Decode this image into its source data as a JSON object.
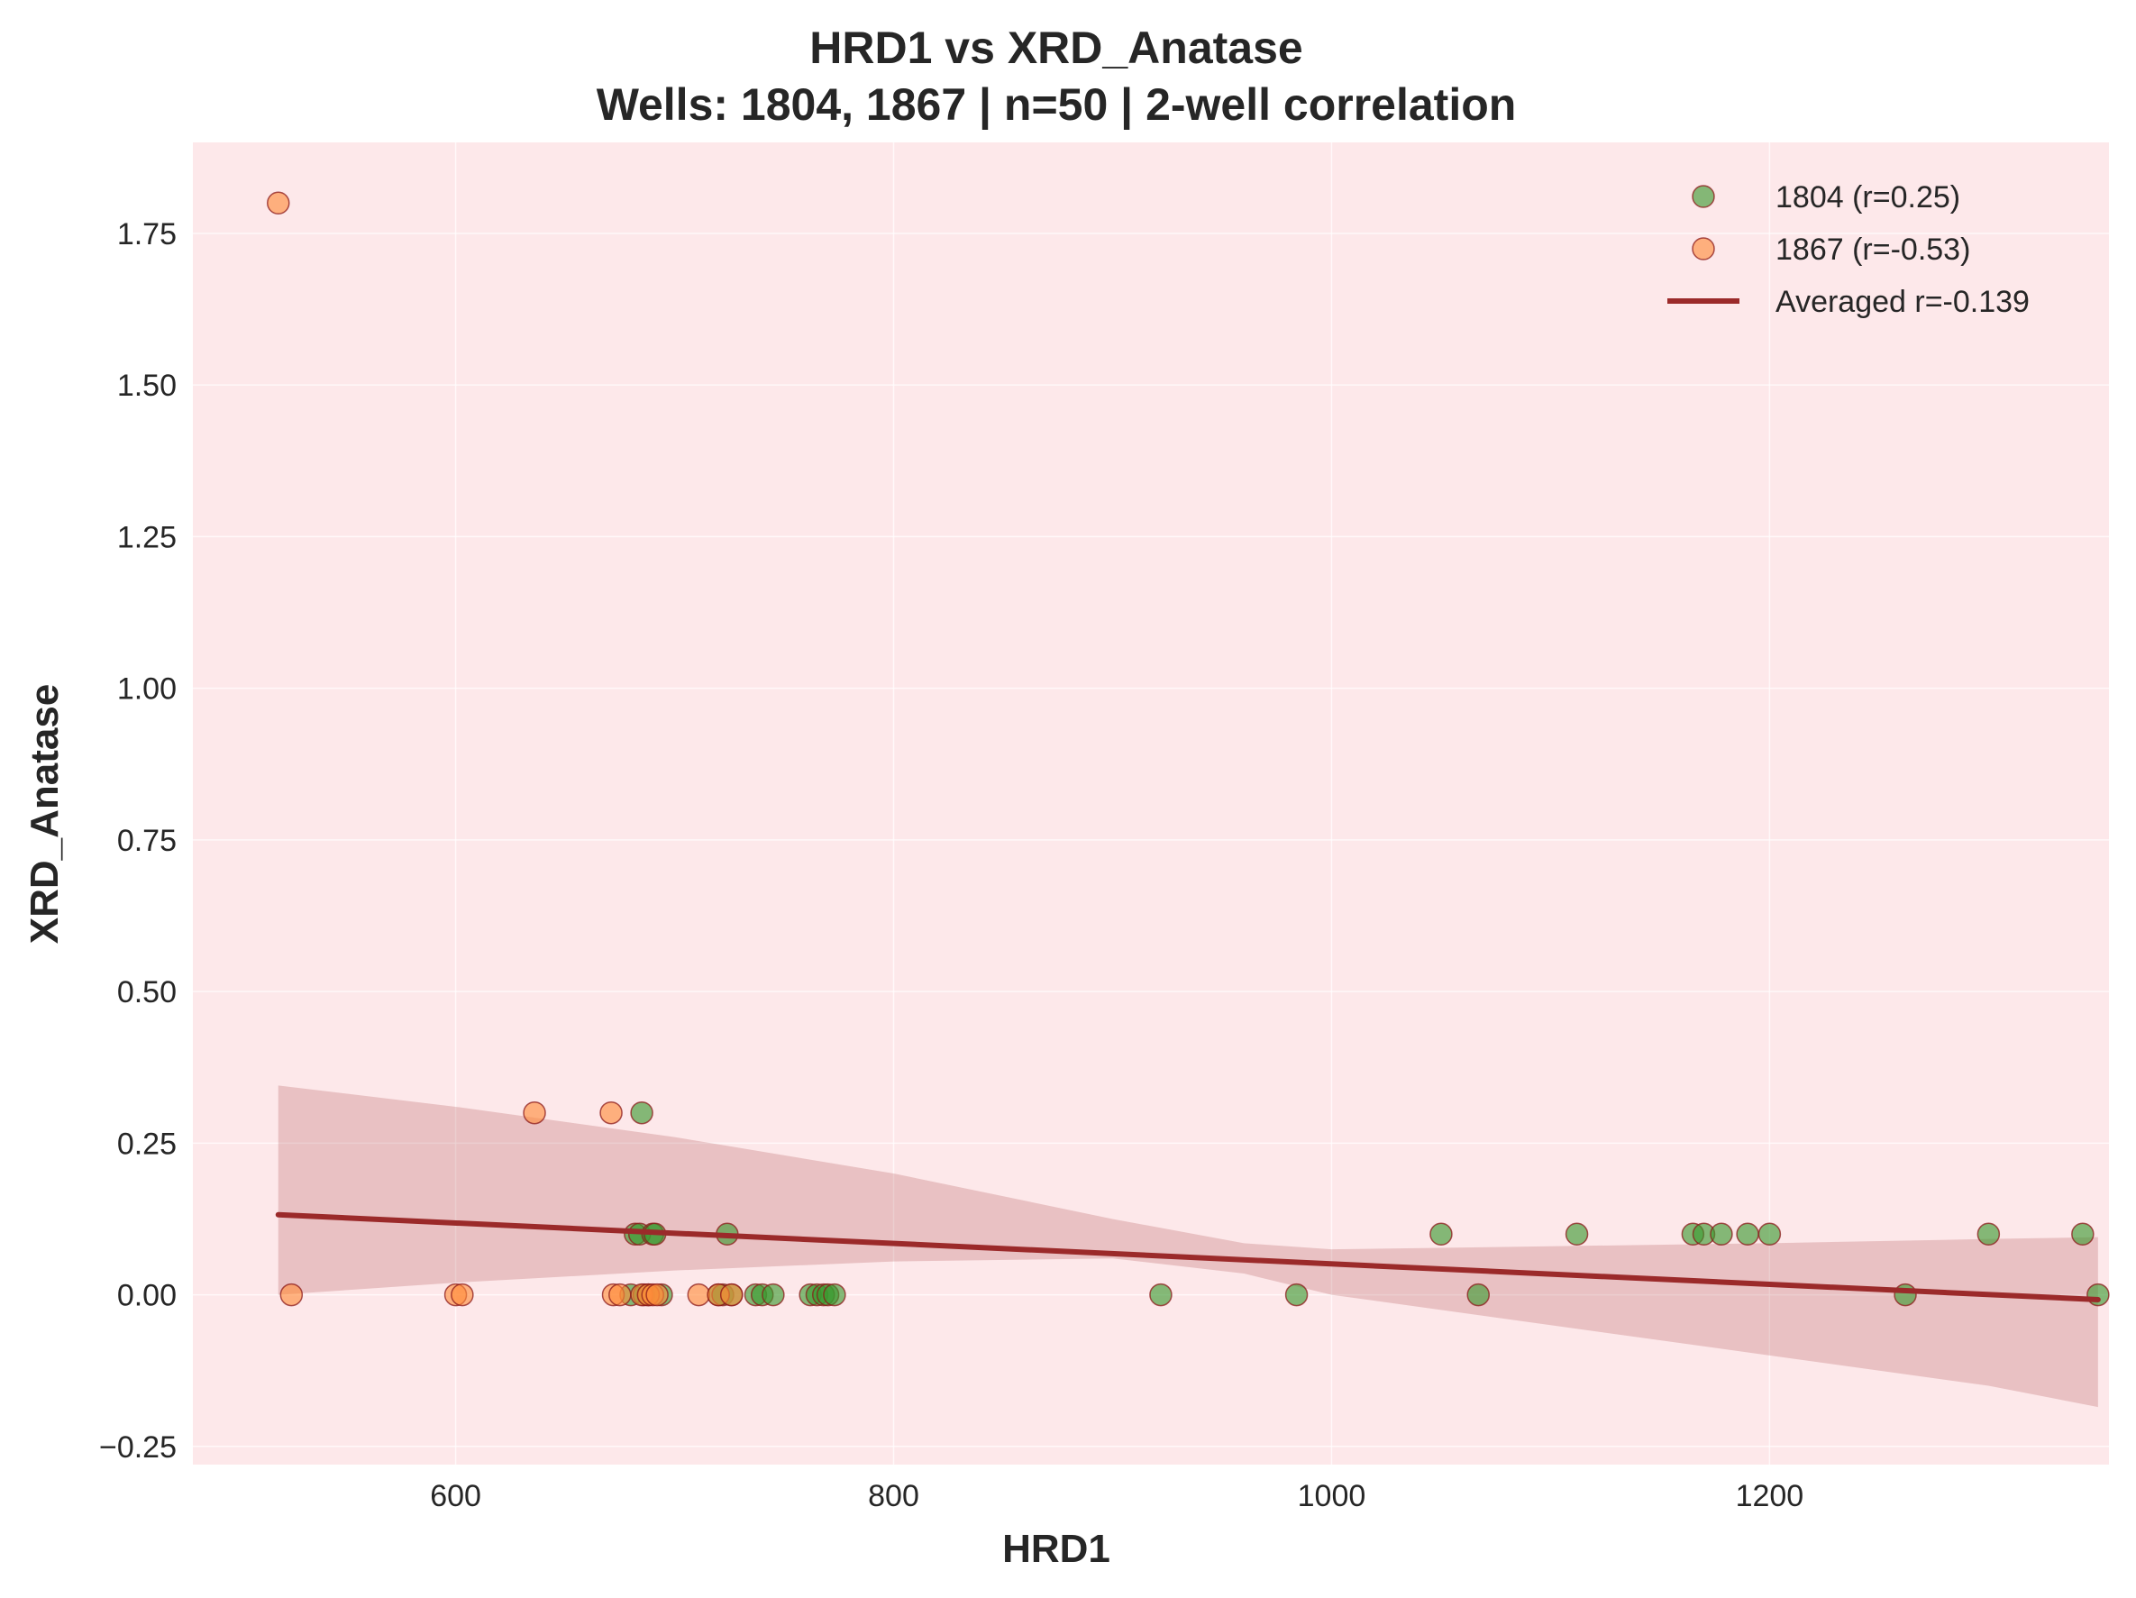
{
  "chart_data": {
    "type": "scatter",
    "title": "HRD1 vs XRD_Anatase",
    "subtitle": "Wells: 1804, 1867 | n=50 | 2-well correlation",
    "xlabel": "HRD1",
    "ylabel": "XRD_Anatase",
    "xlim": [
      480,
      1355
    ],
    "ylim": [
      -0.28,
      1.9
    ],
    "x_ticks": [
      600,
      800,
      1000,
      1200
    ],
    "x_tick_labels": [
      "600",
      "800",
      "1000",
      "1200"
    ],
    "y_ticks": [
      -0.25,
      0.0,
      0.25,
      0.5,
      0.75,
      1.0,
      1.25,
      1.5,
      1.75
    ],
    "y_tick_labels": [
      "−0.25",
      "0.00",
      "0.25",
      "0.50",
      "0.75",
      "1.00",
      "1.25",
      "1.50",
      "1.75"
    ],
    "grid": true,
    "background": "#fde8ea",
    "legend_position": "top-right",
    "series": [
      {
        "name": "1804 (r=0.25)",
        "color": "#3a9a2e",
        "points": [
          [
            680,
            0.0
          ],
          [
            682,
            0.1
          ],
          [
            684,
            0.1
          ],
          [
            685,
            0.3
          ],
          [
            686,
            0.0
          ],
          [
            688,
            0.0
          ],
          [
            690,
            0.1
          ],
          [
            691,
            0.1
          ],
          [
            694,
            0.0
          ],
          [
            720,
            0.0
          ],
          [
            722,
            0.0
          ],
          [
            724,
            0.1
          ],
          [
            726,
            0.0
          ],
          [
            737,
            0.0
          ],
          [
            740,
            0.0
          ],
          [
            745,
            0.0
          ],
          [
            762,
            0.0
          ],
          [
            765,
            0.0
          ],
          [
            768,
            0.0
          ],
          [
            770,
            0.0
          ],
          [
            773,
            0.0
          ],
          [
            922,
            0.0
          ],
          [
            984,
            0.0
          ],
          [
            1050,
            0.1
          ],
          [
            1067,
            0.0
          ],
          [
            1112,
            0.1
          ],
          [
            1165,
            0.1
          ],
          [
            1170,
            0.1
          ],
          [
            1178,
            0.1
          ],
          [
            1190,
            0.1
          ],
          [
            1200,
            0.1
          ],
          [
            1262,
            0.0
          ],
          [
            1300,
            0.1
          ],
          [
            1343,
            0.1
          ],
          [
            1350,
            0.0
          ]
        ]
      },
      {
        "name": "1867 (r=-0.53)",
        "color": "#ff8c3a",
        "points": [
          [
            519,
            1.8
          ],
          [
            525,
            0.0
          ],
          [
            600,
            0.0
          ],
          [
            603,
            0.0
          ],
          [
            636,
            0.3
          ],
          [
            671,
            0.3
          ],
          [
            672,
            0.0
          ],
          [
            675,
            0.0
          ],
          [
            685,
            0.0
          ],
          [
            688,
            0.0
          ],
          [
            690,
            0.0
          ],
          [
            692,
            0.0
          ],
          [
            711,
            0.0
          ],
          [
            720,
            0.0
          ],
          [
            726,
            0.0
          ]
        ]
      }
    ],
    "fit": {
      "name": "Averaged r=-0.139",
      "color": "#9b2a2a",
      "x_start": 519,
      "x_end": 1350,
      "y_start": 0.132,
      "y_end": -0.008,
      "band": [
        [
          519,
          0.345,
          0.0
        ],
        [
          600,
          0.31,
          0.02
        ],
        [
          700,
          0.26,
          0.04
        ],
        [
          800,
          0.2,
          0.055
        ],
        [
          900,
          0.125,
          0.06
        ],
        [
          960,
          0.085,
          0.035
        ],
        [
          1000,
          0.075,
          0.0
        ],
        [
          1100,
          0.08,
          -0.05
        ],
        [
          1200,
          0.085,
          -0.1
        ],
        [
          1300,
          0.092,
          -0.15
        ],
        [
          1350,
          0.095,
          -0.185
        ]
      ]
    }
  }
}
